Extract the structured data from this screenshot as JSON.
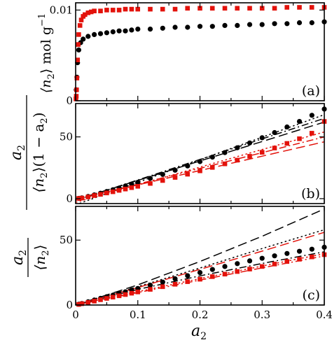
{
  "chart_data": [
    {
      "type": "scatter",
      "panel_label": "(a)",
      "ylabel": {
        "prefix": "⟨n",
        "sub": "2",
        "suffix": "⟩ mol g",
        "sup": "−1"
      },
      "xlim": [
        0,
        0.4
      ],
      "ylim": [
        0,
        0.0108
      ],
      "yticks": [
        0,
        0.01
      ],
      "ytick_labels": [
        "0",
        "0.01"
      ],
      "grid": false,
      "series": [
        {
          "color": "#000000",
          "marker": "circle",
          "x": [
            0.001,
            0.002,
            0.003,
            0.005,
            0.008,
            0.012,
            0.02,
            0.03,
            0.04,
            0.05,
            0.06,
            0.07,
            0.08,
            0.09,
            0.1,
            0.12,
            0.14,
            0.16,
            0.18,
            0.2,
            0.22,
            0.24,
            0.26,
            0.28,
            0.3,
            0.32,
            0.34,
            0.36,
            0.38,
            0.4
          ],
          "y": [
            0.0012,
            0.0026,
            0.0042,
            0.0056,
            0.0064,
            0.0068,
            0.0071,
            0.0073,
            0.0074,
            0.0075,
            0.0076,
            0.0077,
            0.0077,
            0.0078,
            0.0079,
            0.0079,
            0.008,
            0.0081,
            0.0081,
            0.0082,
            0.0082,
            0.0083,
            0.0083,
            0.0084,
            0.0084,
            0.0085,
            0.0085,
            0.0086,
            0.0086,
            0.0087
          ]
        },
        {
          "color": "#e3120b",
          "marker": "square",
          "x": [
            0.0005,
            0.001,
            0.0015,
            0.002,
            0.003,
            0.004,
            0.005,
            0.007,
            0.009,
            0.012,
            0.015,
            0.02,
            0.025,
            0.03,
            0.04,
            0.05,
            0.06,
            0.07,
            0.08,
            0.09,
            0.1,
            0.12,
            0.14,
            0.16,
            0.18,
            0.2,
            0.22,
            0.24,
            0.26,
            0.28,
            0.3,
            0.32,
            0.34,
            0.36,
            0.38,
            0.4
          ],
          "y": [
            0.0002,
            0.0005,
            0.0012,
            0.0025,
            0.0045,
            0.0062,
            0.0073,
            0.0083,
            0.0089,
            0.0093,
            0.0095,
            0.0097,
            0.0098,
            0.0099,
            0.0099,
            0.01,
            0.01,
            0.01,
            0.0101,
            0.0101,
            0.0101,
            0.0101,
            0.0101,
            0.0101,
            0.0102,
            0.0102,
            0.0102,
            0.0102,
            0.0102,
            0.0102,
            0.0102,
            0.0102,
            0.0103,
            0.0103,
            0.0103,
            0.0103
          ]
        }
      ]
    },
    {
      "type": "scatter",
      "panel_label": "(b)",
      "ylabel": {
        "num": "a",
        "num_sub": "2",
        "den_a": "⟨n",
        "den_a_sub": "2",
        "den_b": "⟩(1 − a",
        "den_b_sub": "2",
        "den_c": ")"
      },
      "xlim": [
        0,
        0.4
      ],
      "ylim": [
        -4,
        77
      ],
      "yticks": [
        0,
        50
      ],
      "ytick_labels": [
        "0",
        "50"
      ],
      "grid": false,
      "series": [
        {
          "color": "#000000",
          "marker": "circle",
          "x": [
            0.005,
            0.01,
            0.02,
            0.03,
            0.04,
            0.05,
            0.06,
            0.07,
            0.08,
            0.09,
            0.1,
            0.12,
            0.14,
            0.16,
            0.18,
            0.2,
            0.22,
            0.24,
            0.26,
            0.28,
            0.3,
            0.32,
            0.34,
            0.36,
            0.38,
            0.4
          ],
          "y": [
            0.2,
            0.6,
            1.8,
            3.0,
            4.4,
            5.8,
            7.2,
            8.6,
            10.2,
            11.7,
            13.2,
            16.4,
            19.6,
            23.0,
            26.5,
            30.0,
            33.6,
            37.3,
            41.2,
            45.1,
            49.3,
            53.5,
            58.0,
            62.5,
            67.5,
            72.5
          ]
        },
        {
          "color": "#e3120b",
          "marker": "square",
          "x": [
            0.005,
            0.01,
            0.02,
            0.03,
            0.04,
            0.05,
            0.06,
            0.07,
            0.08,
            0.09,
            0.1,
            0.12,
            0.14,
            0.16,
            0.18,
            0.2,
            0.22,
            0.24,
            0.26,
            0.28,
            0.3,
            0.32,
            0.34,
            0.36,
            0.38,
            0.4
          ],
          "y": [
            0.2,
            0.5,
            1.4,
            2.5,
            3.5,
            4.6,
            5.6,
            6.7,
            7.8,
            8.9,
            10.0,
            12.3,
            14.7,
            17.2,
            19.8,
            22.5,
            25.3,
            28.2,
            31.2,
            34.3,
            37.5,
            41.0,
            44.7,
            48.5,
            53.0,
            62.5
          ]
        }
      ],
      "fit_lines": [
        {
          "color": "#000000",
          "dash": "long",
          "x": [
            0,
            0.4
          ],
          "y": [
            -1.0,
            62.0
          ]
        },
        {
          "color": "#000000",
          "dash": "dashdot",
          "x": [
            0,
            0.4
          ],
          "y": [
            -1.5,
            65.0
          ]
        },
        {
          "color": "#000000",
          "dash": "dot",
          "x": [
            0,
            0.4
          ],
          "y": [
            -5.0,
            68.0
          ]
        },
        {
          "color": "#e3120b",
          "dash": "long",
          "x": [
            0,
            0.4
          ],
          "y": [
            -0.5,
            46.0
          ]
        },
        {
          "color": "#e3120b",
          "dash": "dashdot",
          "x": [
            0,
            0.4
          ],
          "y": [
            -1.0,
            50.0
          ]
        },
        {
          "color": "#e3120b",
          "dash": "dot",
          "x": [
            0,
            0.4
          ],
          "y": [
            -3.0,
            54.0
          ]
        }
      ]
    },
    {
      "type": "scatter",
      "panel_label": "(c)",
      "xlabel": {
        "main": "a",
        "sub": "2"
      },
      "ylabel": {
        "num": "a",
        "num_sub": "2",
        "den_a": "⟨n",
        "den_a_sub": "2",
        "den_c": "⟩"
      },
      "xlim": [
        0,
        0.4
      ],
      "ylim": [
        0,
        76
      ],
      "xticks": [
        0,
        0.1,
        0.2,
        0.3,
        0.4
      ],
      "xtick_labels": [
        "0",
        "0.1",
        "0.2",
        "0.3",
        "0.4"
      ],
      "yticks": [
        0,
        50
      ],
      "ytick_labels": [
        "0",
        "50"
      ],
      "grid": false,
      "series": [
        {
          "color": "#000000",
          "marker": "circle",
          "x": [
            0.005,
            0.01,
            0.02,
            0.03,
            0.04,
            0.05,
            0.06,
            0.07,
            0.08,
            0.09,
            0.1,
            0.12,
            0.14,
            0.16,
            0.18,
            0.2,
            0.22,
            0.24,
            0.26,
            0.28,
            0.3,
            0.32,
            0.34,
            0.36,
            0.38,
            0.4
          ],
          "y": [
            0.6,
            1.2,
            2.5,
            3.8,
            5.1,
            6.4,
            7.6,
            8.9,
            10.2,
            11.5,
            12.8,
            15.3,
            17.7,
            20.2,
            22.6,
            25.0,
            27.4,
            29.7,
            31.9,
            34.0,
            36.0,
            37.9,
            39.7,
            41.4,
            43.0,
            44.5
          ]
        },
        {
          "color": "#e3120b",
          "marker": "square",
          "x": [
            0.005,
            0.01,
            0.02,
            0.03,
            0.04,
            0.05,
            0.06,
            0.07,
            0.08,
            0.09,
            0.1,
            0.12,
            0.14,
            0.16,
            0.18,
            0.2,
            0.22,
            0.24,
            0.26,
            0.28,
            0.3,
            0.32,
            0.34,
            0.36,
            0.38,
            0.4
          ],
          "y": [
            0.5,
            1.0,
            2.0,
            3.0,
            4.1,
            5.1,
            6.1,
            7.1,
            8.1,
            9.1,
            10.1,
            12.1,
            14.1,
            16.0,
            18.0,
            19.9,
            21.9,
            23.8,
            25.8,
            27.7,
            29.7,
            31.6,
            33.5,
            35.3,
            37.1,
            38.8
          ]
        }
      ],
      "fit_lines": [
        {
          "color": "#000000",
          "dash": "long",
          "x": [
            0,
            0.1,
            0.2,
            0.3,
            0.4
          ],
          "y": [
            0,
            15.5,
            33.5,
            53.0,
            74.0
          ]
        },
        {
          "color": "#000000",
          "dash": "dot",
          "x": [
            0,
            0.1,
            0.2,
            0.3,
            0.4
          ],
          "y": [
            0,
            14.2,
            28.5,
            43.5,
            58.0
          ]
        },
        {
          "color": "#000000",
          "dash": "dashdot",
          "x": [
            0,
            0.1,
            0.2,
            0.3,
            0.4
          ],
          "y": [
            0,
            12.0,
            22.5,
            32.0,
            41.0
          ]
        },
        {
          "color": "#e3120b",
          "dash": "long",
          "x": [
            0,
            0.1,
            0.2,
            0.3,
            0.4
          ],
          "y": [
            0,
            13.5,
            27.5,
            41.5,
            56.0
          ]
        },
        {
          "color": "#e3120b",
          "dash": "dot",
          "x": [
            0,
            0.1,
            0.2,
            0.3,
            0.4
          ],
          "y": [
            0,
            10.3,
            20.3,
            30.0,
            39.5
          ]
        },
        {
          "color": "#e3120b",
          "dash": "dashdot",
          "x": [
            0,
            0.1,
            0.2,
            0.3,
            0.4
          ],
          "y": [
            0,
            9.6,
            19.2,
            28.6,
            37.8
          ]
        }
      ]
    }
  ]
}
